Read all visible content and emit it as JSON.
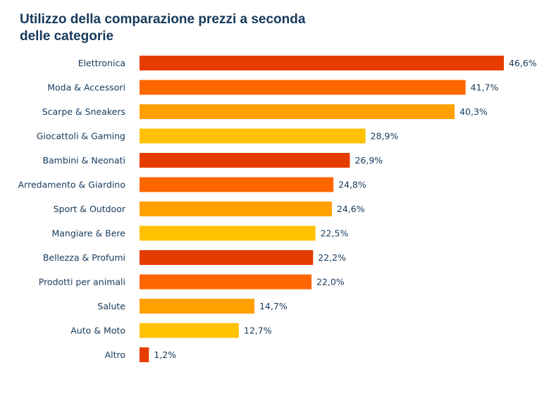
{
  "chart_data": {
    "type": "bar",
    "orientation": "horizontal",
    "title": "Utilizzo della comparazione prezzi a seconda delle categorie",
    "categories": [
      "Elettronica",
      "Moda & Accessori",
      "Scarpe & Sneakers",
      "Giocattoli & Gaming",
      "Bambini & Neonati",
      "Arredamento & Giardino",
      "Sport & Outdoor",
      "Mangiare & Bere",
      "Bellezza & Profumi",
      "Prodotti per animali",
      "Salute",
      "Auto & Moto",
      "Altro"
    ],
    "values": [
      46.6,
      41.7,
      40.3,
      28.9,
      26.9,
      24.8,
      24.6,
      22.5,
      22.2,
      22.0,
      14.7,
      12.7,
      1.2
    ],
    "value_labels": [
      "46,6%",
      "41,7%",
      "40,3%",
      "28,9%",
      "26,9%",
      "24,8%",
      "24,6%",
      "22,5%",
      "22,2%",
      "22,0%",
      "14,7%",
      "12,7%",
      "1,2%"
    ],
    "unit": "%",
    "xlim": [
      0,
      46.6
    ],
    "grid": false,
    "legend": "none",
    "colors": [
      "#e63c00",
      "#ff6600",
      "#ffa000",
      "#ffc100"
    ]
  }
}
